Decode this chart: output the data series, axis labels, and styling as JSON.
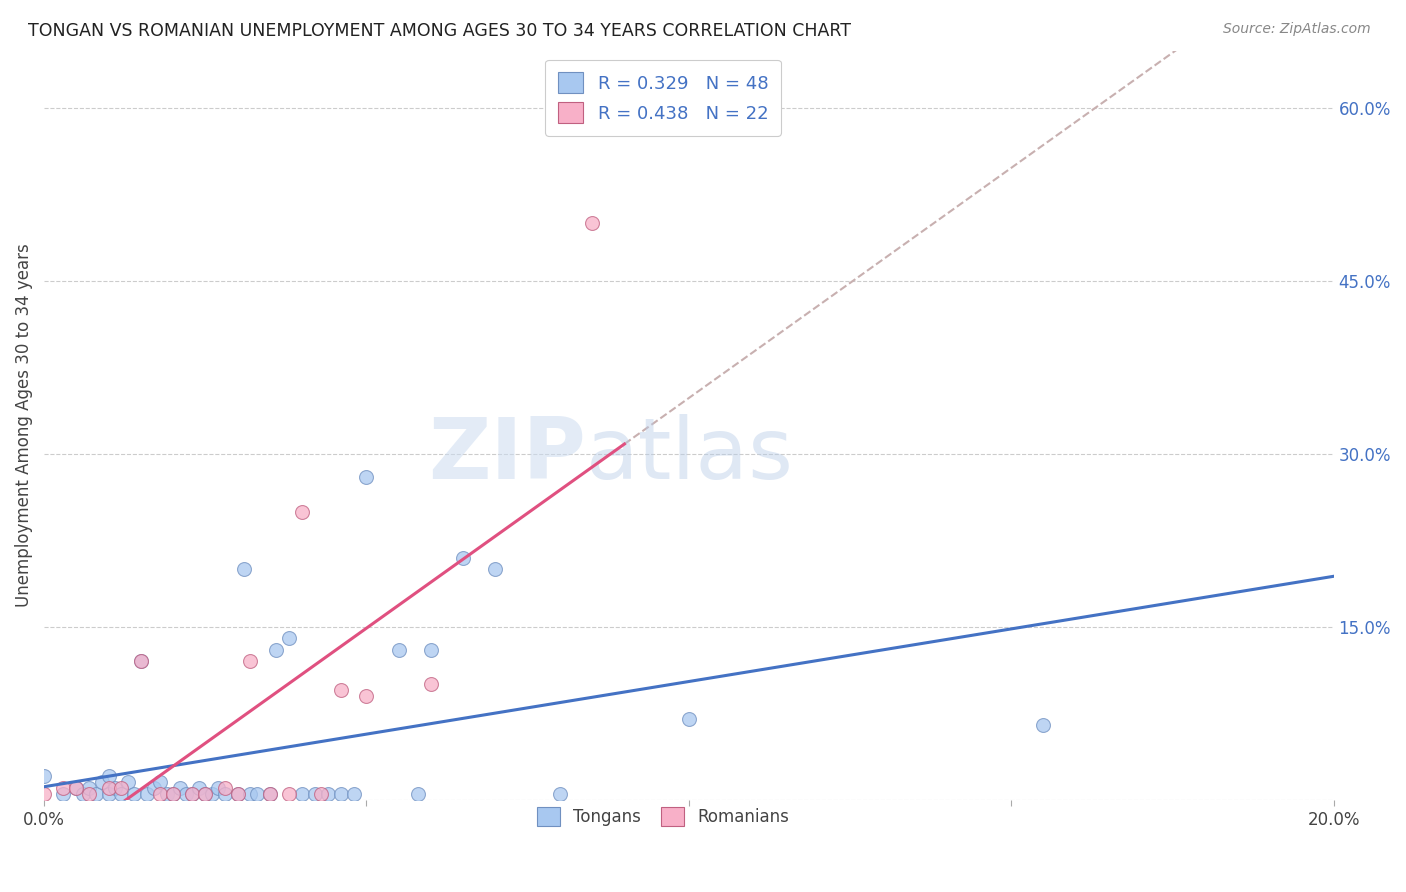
{
  "title": "TONGAN VS ROMANIAN UNEMPLOYMENT AMONG AGES 30 TO 34 YEARS CORRELATION CHART",
  "source": "Source: ZipAtlas.com",
  "ylabel": "Unemployment Among Ages 30 to 34 years",
  "xlim": [
    0.0,
    0.2
  ],
  "ylim": [
    0.0,
    0.65
  ],
  "xticks": [
    0.0,
    0.05,
    0.1,
    0.15,
    0.2
  ],
  "xticklabels": [
    "0.0%",
    "",
    "",
    "",
    "20.0%"
  ],
  "ytick_positions": [
    0.0,
    0.15,
    0.3,
    0.45,
    0.6
  ],
  "ytick_labels": [
    "",
    "15.0%",
    "30.0%",
    "45.0%",
    "60.0%"
  ],
  "tongan_x": [
    0.0,
    0.003,
    0.005,
    0.006,
    0.007,
    0.008,
    0.009,
    0.01,
    0.01,
    0.011,
    0.012,
    0.013,
    0.014,
    0.015,
    0.016,
    0.017,
    0.018,
    0.019,
    0.02,
    0.021,
    0.022,
    0.023,
    0.024,
    0.025,
    0.026,
    0.027,
    0.028,
    0.03,
    0.031,
    0.032,
    0.033,
    0.035,
    0.036,
    0.038,
    0.04,
    0.042,
    0.044,
    0.046,
    0.048,
    0.05,
    0.055,
    0.058,
    0.06,
    0.065,
    0.07,
    0.08,
    0.1,
    0.155
  ],
  "tongan_y": [
    0.02,
    0.005,
    0.01,
    0.005,
    0.01,
    0.005,
    0.015,
    0.005,
    0.02,
    0.01,
    0.005,
    0.015,
    0.005,
    0.12,
    0.005,
    0.01,
    0.015,
    0.005,
    0.005,
    0.01,
    0.005,
    0.005,
    0.01,
    0.005,
    0.005,
    0.01,
    0.005,
    0.005,
    0.2,
    0.005,
    0.005,
    0.005,
    0.13,
    0.14,
    0.005,
    0.005,
    0.005,
    0.005,
    0.005,
    0.28,
    0.13,
    0.005,
    0.13,
    0.21,
    0.2,
    0.005,
    0.07,
    0.065
  ],
  "romanian_x": [
    0.0,
    0.003,
    0.005,
    0.007,
    0.01,
    0.012,
    0.015,
    0.018,
    0.02,
    0.023,
    0.025,
    0.028,
    0.03,
    0.032,
    0.035,
    0.038,
    0.04,
    0.043,
    0.046,
    0.05,
    0.06,
    0.085
  ],
  "romanian_y": [
    0.005,
    0.01,
    0.01,
    0.005,
    0.01,
    0.01,
    0.12,
    0.005,
    0.005,
    0.005,
    0.005,
    0.01,
    0.005,
    0.12,
    0.005,
    0.005,
    0.25,
    0.005,
    0.095,
    0.09,
    0.1,
    0.5
  ],
  "tongan_color": "#a8c8f0",
  "romanian_color": "#f8b0c8",
  "tongan_line_color": "#4472c4",
  "romanian_line_color": "#e05080",
  "dash_line_color": "#c8b0b0",
  "tongan_edge_color": "#7090c0",
  "romanian_edge_color": "#c06080",
  "R_tongan": 0.329,
  "N_tongan": 48,
  "R_romanian": 0.438,
  "N_romanian": 22,
  "background_color": "#ffffff",
  "legend_tongan": "Tongans",
  "legend_romanian": "Romanians",
  "romanian_line_xmax": 0.09
}
